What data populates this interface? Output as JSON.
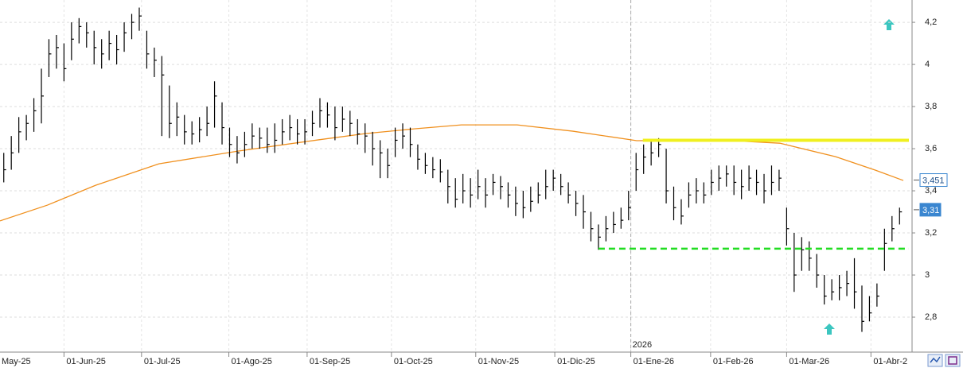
{
  "chart_data": {
    "type": "ohlc",
    "xlim": [
      0,
      120
    ],
    "xticks": [
      {
        "value": -2,
        "label": "May-25"
      },
      {
        "value": 8.5,
        "label": "01-Jun-25"
      },
      {
        "value": 18.8,
        "label": "01-Jul-25"
      },
      {
        "value": 30.4,
        "label": "01-Ago-25"
      },
      {
        "value": 40.8,
        "label": "01-Sep-25"
      },
      {
        "value": 52,
        "label": "01-Oct-25"
      },
      {
        "value": 63.2,
        "label": "01-Nov-25"
      },
      {
        "value": 73.7,
        "label": "01-Dic-25"
      },
      {
        "value": 83.8,
        "label": "01-Ene-26"
      },
      {
        "value": 94.4,
        "label": "01-Feb-26"
      },
      {
        "value": 104.5,
        "label": "01-Mar-26"
      },
      {
        "value": 115.7,
        "label": "01-Abr-2"
      }
    ],
    "year_label": "2026",
    "ylim": [
      2.634,
      4.306
    ],
    "yticks": [
      {
        "value": 4.2,
        "label": "4,2"
      },
      4,
      {
        "value": 3.8,
        "label": "3,8"
      },
      {
        "value": 3.6,
        "label": "3,6"
      },
      {
        "value": 3.4,
        "label": "3,4"
      },
      {
        "value": 3.2,
        "label": "3,2"
      },
      3,
      {
        "value": 2.8,
        "label": "2,8"
      }
    ],
    "grid": true,
    "color": "#000000",
    "values": [
      3.5,
      3.58,
      3.68,
      3.72,
      3.78,
      3.85,
      4.05,
      4.08,
      3.98,
      4.12,
      4.18,
      4.15,
      4.08,
      4.05,
      4.1,
      4.07,
      4.15,
      4.2,
      4.23,
      4.05,
      4.02,
      3.95,
      3.72,
      3.75,
      3.68,
      3.67,
      3.69,
      3.72,
      3.85,
      3.7,
      3.62,
      3.58,
      3.62,
      3.66,
      3.65,
      3.62,
      3.64,
      3.68,
      3.7,
      3.67,
      3.68,
      3.72,
      3.78,
      3.76,
      3.7,
      3.74,
      3.72,
      3.67,
      3.66,
      3.6,
      3.58,
      3.52,
      3.64,
      3.66,
      3.62,
      3.55,
      3.52,
      3.5,
      3.49,
      3.42,
      3.36,
      3.4,
      3.38,
      3.42,
      3.38,
      3.44,
      3.42,
      3.38,
      3.34,
      3.32,
      3.35,
      3.38,
      3.42,
      3.46,
      3.42,
      3.38,
      3.34,
      3.3,
      3.22,
      3.18,
      3.22,
      3.24,
      3.26,
      3.32,
      3.5,
      3.56,
      3.58,
      3.62,
      3.4,
      3.32,
      3.28,
      3.38,
      3.4,
      3.38,
      3.44,
      3.46,
      3.48,
      3.44,
      3.42,
      3.46,
      3.44,
      3.4,
      3.44,
      3.46,
      3.22,
      3.0,
      3.12,
      3.08,
      3.0,
      2.9,
      2.92,
      2.94,
      2.96,
      2.92,
      2.78,
      2.82,
      2.9,
      3.15,
      3.22,
      3.3
    ],
    "high": [
      3.58,
      3.66,
      3.75,
      3.76,
      3.84,
      3.98,
      4.12,
      4.14,
      4.1,
      4.2,
      4.22,
      4.2,
      4.16,
      4.12,
      4.16,
      4.14,
      4.2,
      4.24,
      4.27,
      4.16,
      4.08,
      4.04,
      3.9,
      3.82,
      3.76,
      3.73,
      3.75,
      3.8,
      3.92,
      3.82,
      3.7,
      3.66,
      3.68,
      3.72,
      3.7,
      3.7,
      3.72,
      3.74,
      3.76,
      3.74,
      3.74,
      3.78,
      3.84,
      3.82,
      3.8,
      3.8,
      3.78,
      3.74,
      3.72,
      3.68,
      3.64,
      3.6,
      3.7,
      3.72,
      3.7,
      3.62,
      3.58,
      3.56,
      3.55,
      3.5,
      3.46,
      3.48,
      3.46,
      3.5,
      3.46,
      3.48,
      3.47,
      3.44,
      3.42,
      3.4,
      3.42,
      3.44,
      3.5,
      3.5,
      3.48,
      3.44,
      3.4,
      3.38,
      3.3,
      3.24,
      3.28,
      3.3,
      3.32,
      3.4,
      3.58,
      3.62,
      3.64,
      3.65,
      3.6,
      3.42,
      3.36,
      3.44,
      3.46,
      3.44,
      3.5,
      3.52,
      3.52,
      3.52,
      3.5,
      3.52,
      3.5,
      3.48,
      3.52,
      3.5,
      3.32,
      3.2,
      3.18,
      3.16,
      3.1,
      3.0,
      2.98,
      3.0,
      3.02,
      3.08,
      2.95,
      2.9,
      2.96,
      3.22,
      3.28,
      3.32
    ],
    "low": [
      3.44,
      3.5,
      3.58,
      3.64,
      3.68,
      3.72,
      3.94,
      3.98,
      3.92,
      4.02,
      4.1,
      4.08,
      4.0,
      3.98,
      4.02,
      4.0,
      4.06,
      4.12,
      4.16,
      3.98,
      3.94,
      3.66,
      3.65,
      3.66,
      3.62,
      3.62,
      3.63,
      3.66,
      3.7,
      3.62,
      3.56,
      3.53,
      3.56,
      3.6,
      3.6,
      3.58,
      3.58,
      3.62,
      3.64,
      3.62,
      3.62,
      3.66,
      3.7,
      3.7,
      3.64,
      3.68,
      3.66,
      3.62,
      3.58,
      3.52,
      3.46,
      3.46,
      3.56,
      3.6,
      3.56,
      3.5,
      3.48,
      3.46,
      3.44,
      3.34,
      3.32,
      3.34,
      3.32,
      3.36,
      3.32,
      3.38,
      3.36,
      3.32,
      3.28,
      3.27,
      3.3,
      3.34,
      3.36,
      3.4,
      3.38,
      3.34,
      3.28,
      3.22,
      3.16,
      3.12,
      3.16,
      3.2,
      3.22,
      3.26,
      3.4,
      3.48,
      3.52,
      3.56,
      3.34,
      3.26,
      3.24,
      3.32,
      3.34,
      3.34,
      3.38,
      3.4,
      3.42,
      3.38,
      3.36,
      3.4,
      3.38,
      3.34,
      3.38,
      3.4,
      3.14,
      2.92,
      3.02,
      3.02,
      2.94,
      2.86,
      2.88,
      2.88,
      2.9,
      2.84,
      2.73,
      2.78,
      2.85,
      3.02,
      3.16,
      3.24
    ],
    "moving_average": {
      "color": "#f0901e",
      "x": [
        0,
        6.3,
        12.7,
        21.1,
        31.7,
        42.3,
        48.6,
        55,
        61.3,
        68.7,
        76.1,
        84.6,
        95.2,
        103.6,
        111,
        116.3,
        120
      ],
      "values": [
        3.257,
        3.332,
        3.426,
        3.528,
        3.589,
        3.642,
        3.672,
        3.694,
        3.713,
        3.713,
        3.683,
        3.638,
        3.642,
        3.626,
        3.562,
        3.498,
        3.449
      ]
    },
    "levels": [
      {
        "value": 3.64,
        "color": "#f0f020",
        "from": 85.4,
        "dashed": false
      },
      {
        "value": 3.125,
        "color": "#22dd22",
        "from": 79.5,
        "dashed": true
      }
    ],
    "price_tags": [
      {
        "value": 3.451,
        "label": "3,451",
        "filled": false
      },
      {
        "value": 3.31,
        "label": "3,31",
        "filled": true
      }
    ]
  }
}
